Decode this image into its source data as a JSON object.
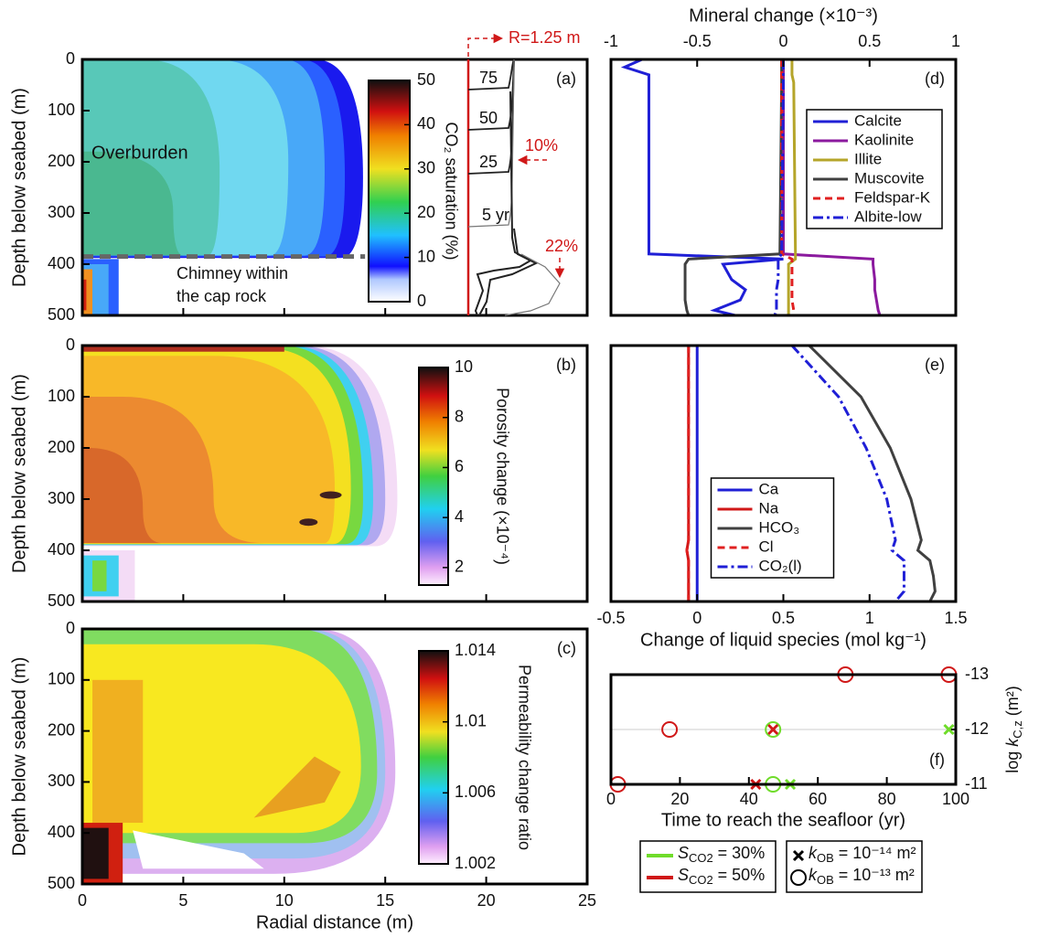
{
  "chart_data": [
    {
      "type": "contour",
      "panel": "(a)",
      "ylabel": "Depth below seabed (m)",
      "ylim": [
        500,
        0
      ],
      "yticks": [
        0,
        100,
        200,
        300,
        400,
        500
      ],
      "colorbar": {
        "label": "CO₂ saturation (%)",
        "lim": [
          0,
          50
        ],
        "ticks": [
          0,
          10,
          20,
          30,
          40,
          50
        ]
      },
      "annotations": [
        "Overburden",
        "Chimney within",
        "the cap rock"
      ],
      "inset": {
        "radius_label": "R=1.25 m",
        "time_labels": [
          "75",
          "50",
          "25",
          "5 yr"
        ],
        "saturation_labels": [
          "10%",
          "22%"
        ]
      }
    },
    {
      "type": "contour",
      "panel": "(b)",
      "ylabel": "Depth below seabed (m)",
      "ylim": [
        500,
        0
      ],
      "yticks": [
        0,
        100,
        200,
        300,
        400,
        500
      ],
      "colorbar": {
        "label": "Porosity change (×10⁻⁴)",
        "lim": [
          1.3,
          10
        ],
        "ticks": [
          2,
          4,
          6,
          8,
          10
        ]
      }
    },
    {
      "type": "contour",
      "panel": "(c)",
      "ylabel": "Depth below seabed (m)",
      "ylim": [
        500,
        0
      ],
      "yticks": [
        0,
        100,
        200,
        300,
        400,
        500
      ],
      "xlabel": "Radial distance (m)",
      "xlim": [
        0,
        25
      ],
      "xticks": [
        0,
        5,
        10,
        15,
        20,
        25
      ],
      "colorbar": {
        "label": "Permeability change ratio",
        "lim": [
          1.002,
          1.014
        ],
        "ticks": [
          1.002,
          1.006,
          1.01,
          1.014
        ]
      }
    },
    {
      "type": "line",
      "panel": "(d)",
      "xlabel": "Mineral change (×10⁻³)",
      "xaxis_position": "top",
      "xlim": [
        -1,
        1
      ],
      "xticks": [
        -1,
        -0.5,
        0,
        0.5,
        1
      ],
      "ylim": [
        500,
        0
      ],
      "legend": "upper right",
      "y": [
        0,
        15,
        30,
        45,
        380,
        390,
        400,
        430,
        450,
        470,
        490,
        500
      ],
      "series": [
        {
          "name": "Calcite",
          "color": "#1f1fd6",
          "dash": "solid",
          "values": [
            -0.82,
            -0.92,
            -0.78,
            -0.78,
            -0.78,
            0.0,
            -0.35,
            -0.3,
            -0.22,
            -0.25,
            -0.4,
            -0.28
          ]
        },
        {
          "name": "Kaolinite",
          "color": "#8b1a9e",
          "dash": "solid",
          "values": [
            0,
            0,
            0,
            0,
            0,
            0.52,
            0.52,
            0.53,
            0.53,
            0.54,
            0.55,
            0.56
          ]
        },
        {
          "name": "Illite",
          "color": "#b5a52a",
          "dash": "solid",
          "values": [
            0.05,
            0.05,
            0.05,
            0.06,
            0.07,
            0.07,
            0.03,
            0.03,
            0.03,
            0.03,
            0.03,
            0.03
          ]
        },
        {
          "name": "Muscovite",
          "color": "#404040",
          "dash": "solid",
          "values": [
            -0.01,
            -0.01,
            -0.01,
            -0.01,
            -0.02,
            -0.55,
            -0.57,
            -0.57,
            -0.57,
            -0.57,
            -0.56,
            -0.55
          ]
        },
        {
          "name": "Feldspar-K",
          "color": "#e02020",
          "dash": "dashed",
          "values": [
            -0.01,
            -0.01,
            -0.01,
            -0.01,
            -0.01,
            0.05,
            0.05,
            0.05,
            0.05,
            0.05,
            0.06,
            0.06
          ]
        },
        {
          "name": "Albite-low",
          "color": "#1f1fd6",
          "dash": "dashdot",
          "values": [
            0,
            0,
            0,
            0,
            -0.01,
            -0.03,
            -0.03,
            -0.03,
            -0.04,
            -0.04,
            -0.04,
            -0.05
          ]
        }
      ]
    },
    {
      "type": "line",
      "panel": "(e)",
      "xlabel": "Change of liquid species (mol kg⁻¹)",
      "xaxis_position": "bottom",
      "xlim": [
        -0.5,
        1.5
      ],
      "xticks": [
        -0.5,
        0,
        0.5,
        1,
        1.5
      ],
      "ylim": [
        500,
        0
      ],
      "legend": "lower center",
      "y": [
        0,
        100,
        200,
        300,
        380,
        400,
        420,
        450,
        480,
        500
      ],
      "series": [
        {
          "name": "Ca",
          "color": "#1f1fd6",
          "dash": "solid",
          "values": [
            0,
            0,
            0,
            0,
            0,
            0,
            0,
            0,
            0,
            0
          ]
        },
        {
          "name": "Na",
          "color": "#d01818",
          "dash": "solid",
          "values": [
            -0.05,
            -0.05,
            -0.05,
            -0.05,
            -0.05,
            -0.06,
            -0.05,
            -0.05,
            -0.05,
            -0.05
          ]
        },
        {
          "name": "HCO₃",
          "color": "#404040",
          "dash": "solid",
          "values": [
            0.65,
            0.95,
            1.12,
            1.24,
            1.3,
            1.28,
            1.35,
            1.37,
            1.38,
            1.35
          ]
        },
        {
          "name": "Cl",
          "color": "#e02020",
          "dash": "dashed",
          "values": [
            -0.05,
            -0.05,
            -0.05,
            -0.05,
            -0.05,
            -0.06,
            -0.05,
            -0.05,
            -0.05,
            -0.05
          ]
        },
        {
          "name": "CO₂(l)",
          "color": "#1f1fd6",
          "dash": "dashdot",
          "values": [
            0.55,
            0.82,
            0.98,
            1.1,
            1.15,
            1.13,
            1.2,
            1.2,
            1.2,
            1.15
          ]
        }
      ]
    },
    {
      "type": "scatter",
      "panel": "(f)",
      "xlabel": "Time to reach the seafloor (yr)",
      "xlim": [
        0,
        100
      ],
      "xticks": [
        0,
        20,
        40,
        60,
        80,
        100
      ],
      "ylabel": [
        "log ",
        {
          "italic": "k"
        },
        {
          "sub": "C,z"
        },
        " (m²)"
      ],
      "yaxis_position": "right",
      "ylim": [
        -11,
        -13
      ],
      "yticks": [
        -13,
        -12,
        -11
      ],
      "grid": true,
      "series": [
        {
          "color": "#6fdc2a",
          "marker": "x",
          "x": [
            52,
            98
          ],
          "values": [
            -11,
            -12
          ]
        },
        {
          "color": "#6fdc2a",
          "marker": "o",
          "x": [
            47,
            47
          ],
          "values": [
            -11,
            -12
          ]
        },
        {
          "color": "#d01818",
          "marker": "x",
          "x": [
            42,
            47
          ],
          "values": [
            -11,
            -12
          ]
        },
        {
          "color": "#d01818",
          "marker": "o",
          "x": [
            2,
            17,
            68,
            98
          ],
          "values": [
            -11,
            -12,
            -13,
            -13
          ]
        }
      ],
      "color_legend": [
        {
          "label": [
            {
              "italic": "S"
            },
            {
              "sub": "CO2"
            },
            " = 30%"
          ],
          "color": "#6fdc2a"
        },
        {
          "label": [
            {
              "italic": "S"
            },
            {
              "sub": "CO2"
            },
            " = 50%"
          ],
          "color": "#d01818"
        }
      ],
      "marker_legend": [
        {
          "label": [
            {
              "italic": "k"
            },
            {
              "sub": "OB"
            },
            " = 10⁻¹⁴ m²"
          ],
          "marker": "x"
        },
        {
          "label": [
            {
              "italic": "k"
            },
            {
              "sub": "OB"
            },
            " = 10⁻¹³ m²"
          ],
          "marker": "o"
        }
      ]
    }
  ]
}
